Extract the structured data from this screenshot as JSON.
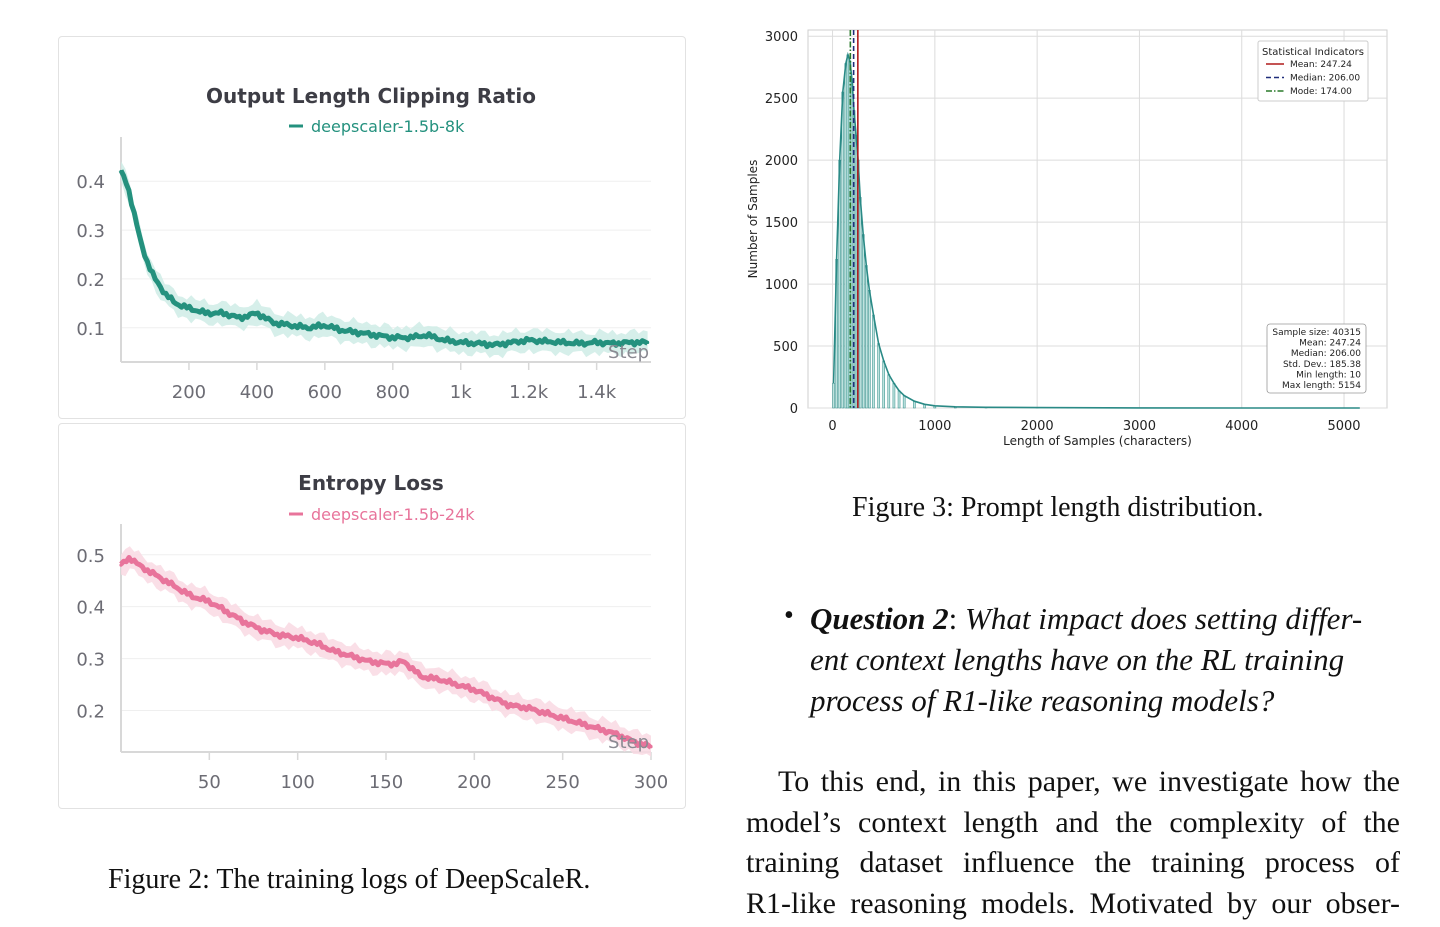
{
  "chart_data": [
    {
      "type": "line",
      "title": "Output Length Clipping Ratio",
      "legend": [
        "deepscaler-1.5b-8k"
      ],
      "xlabel": "Step",
      "ylabel": "",
      "xlim": [
        0,
        1560
      ],
      "ylim": [
        0.03,
        0.47
      ],
      "xticks": [
        200,
        400,
        600,
        800,
        1000,
        1200,
        1400
      ],
      "xtick_labels": [
        "200",
        "400",
        "600",
        "800",
        "1k",
        "1.2k",
        "1.4k"
      ],
      "yticks": [
        0.1,
        0.2,
        0.3,
        0.4
      ],
      "ytick_labels": [
        "0.1",
        "0.2",
        "0.3",
        "0.4"
      ],
      "color": "#24917e",
      "band_color": "#cfece6",
      "series": [
        {
          "name": "deepscaler-1.5b-8k",
          "x": [
            0,
            20,
            40,
            60,
            80,
            100,
            130,
            160,
            200,
            250,
            300,
            350,
            400,
            450,
            500,
            550,
            600,
            650,
            700,
            750,
            800,
            850,
            900,
            950,
            1000,
            1050,
            1100,
            1150,
            1200,
            1250,
            1300,
            1350,
            1400,
            1450,
            1500,
            1550
          ],
          "values": [
            0.42,
            0.39,
            0.33,
            0.27,
            0.23,
            0.2,
            0.17,
            0.15,
            0.14,
            0.13,
            0.13,
            0.12,
            0.13,
            0.11,
            0.105,
            0.1,
            0.105,
            0.095,
            0.09,
            0.085,
            0.08,
            0.08,
            0.085,
            0.075,
            0.07,
            0.068,
            0.065,
            0.07,
            0.075,
            0.072,
            0.07,
            0.068,
            0.07,
            0.068,
            0.07,
            0.07
          ]
        }
      ]
    },
    {
      "type": "line",
      "title": "Entropy Loss",
      "legend": [
        "deepscaler-1.5b-24k"
      ],
      "xlabel": "Step",
      "ylabel": "",
      "xlim": [
        0,
        300
      ],
      "ylim": [
        0.12,
        0.54
      ],
      "xticks": [
        50,
        100,
        150,
        200,
        250,
        300
      ],
      "xtick_labels": [
        "50",
        "100",
        "150",
        "200",
        "250",
        "300"
      ],
      "yticks": [
        0.2,
        0.3,
        0.4,
        0.5
      ],
      "ytick_labels": [
        "0.2",
        "0.3",
        "0.4",
        "0.5"
      ],
      "color": "#e8749b",
      "band_color": "#f9d9e3",
      "series": [
        {
          "name": "deepscaler-1.5b-24k",
          "x": [
            0,
            5,
            10,
            20,
            30,
            40,
            50,
            60,
            70,
            80,
            90,
            100,
            110,
            120,
            130,
            140,
            150,
            155,
            160,
            170,
            180,
            190,
            200,
            210,
            220,
            230,
            240,
            250,
            260,
            270,
            280,
            290,
            300
          ],
          "values": [
            0.48,
            0.495,
            0.48,
            0.46,
            0.44,
            0.42,
            0.41,
            0.39,
            0.37,
            0.355,
            0.345,
            0.34,
            0.33,
            0.315,
            0.305,
            0.295,
            0.29,
            0.29,
            0.295,
            0.265,
            0.26,
            0.25,
            0.24,
            0.225,
            0.21,
            0.205,
            0.195,
            0.185,
            0.175,
            0.165,
            0.155,
            0.14,
            0.13
          ]
        }
      ]
    },
    {
      "type": "bar",
      "title": "",
      "xlabel": "Length of Samples (characters)",
      "ylabel": "Number of Samples",
      "xlim": [
        -240,
        5420
      ],
      "ylim": [
        0,
        3050
      ],
      "xticks": [
        0,
        1000,
        2000,
        3000,
        4000,
        5000
      ],
      "yticks": [
        0,
        500,
        1000,
        1500,
        2000,
        2500,
        3000
      ],
      "color": "#2a8a86",
      "bin_width": 20,
      "histogram": {
        "x": [
          10,
          40,
          70,
          100,
          130,
          150,
          170,
          190,
          210,
          230,
          250,
          270,
          300,
          330,
          360,
          400,
          450,
          500,
          550,
          600,
          650,
          700,
          800,
          900,
          1000,
          1200,
          1500,
          2000,
          3000,
          4000,
          5000,
          5154
        ],
        "values": [
          200,
          1200,
          2000,
          2550,
          2780,
          2850,
          2800,
          2650,
          2400,
          2200,
          2000,
          1700,
          1400,
          1150,
          950,
          750,
          520,
          380,
          270,
          200,
          140,
          100,
          55,
          30,
          18,
          10,
          6,
          3,
          1,
          0,
          0,
          0
        ]
      },
      "reference_lines": [
        {
          "label": "Mean: 247.24",
          "x": 247.24,
          "color": "#b01c1c",
          "style": "solid"
        },
        {
          "label": "Median: 206.00",
          "x": 206.0,
          "color": "#1f2d7a",
          "style": "dashed"
        },
        {
          "label": "Mode: 174.00",
          "x": 174.0,
          "color": "#2a7a2a",
          "style": "dashdot"
        }
      ],
      "legend_title": "Statistical Indicators",
      "legend_position": "top-right",
      "stats_box": {
        "position": "bottom-right",
        "lines": [
          "Sample size: 40315",
          "Mean: 247.24",
          "Median: 206.00",
          "Std. Dev.: 185.38",
          "Min length: 10",
          "Max length: 5154"
        ]
      },
      "grid": true
    }
  ],
  "captions": {
    "fig2": "Figure 2: The training logs of DeepScaleR.",
    "fig3": "Figure 3: Prompt length distribution."
  },
  "bullet": {
    "marker": "•",
    "bold": "Question 2",
    "colon": ":",
    "lines": [
      "What impact does setting differ-",
      "ent context lengths have on the RL training",
      "process of R1-like reasoning models?"
    ]
  },
  "paragraph": {
    "lines": [
      "To this end, in this paper, we investigate how the",
      "model’s context length and the complexity of the",
      "training dataset influence the training process of",
      "R1-like reasoning models. Motivated by our obser-"
    ]
  }
}
